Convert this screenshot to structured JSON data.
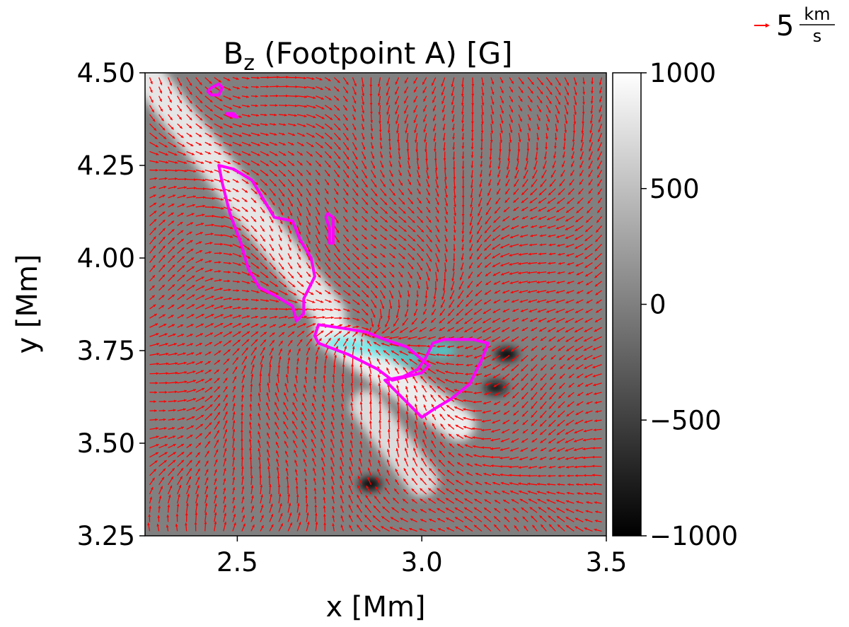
{
  "chart_data": {
    "type": "heatmap",
    "title": {
      "main": "B",
      "sub": "z",
      "rest": " (Footpoint A) [G]"
    },
    "xlabel": "x [Mm]",
    "ylabel": "y [Mm]",
    "xlim": [
      2.25,
      3.5
    ],
    "ylim": [
      3.25,
      4.5
    ],
    "x_ticks": [
      {
        "value": 2.5,
        "label": "2.5"
      },
      {
        "value": 3.0,
        "label": "3.0"
      },
      {
        "value": 3.5,
        "label": "3.5"
      }
    ],
    "y_ticks": [
      {
        "value": 3.25,
        "label": "3.25"
      },
      {
        "value": 3.5,
        "label": "3.50"
      },
      {
        "value": 3.75,
        "label": "3.75"
      },
      {
        "value": 4.0,
        "label": "4.00"
      },
      {
        "value": 4.25,
        "label": "4.25"
      },
      {
        "value": 4.5,
        "label": "4.50"
      }
    ],
    "colorbar": {
      "colormap": "gray",
      "vmin": -1000,
      "vmax": 1000,
      "ticks": [
        {
          "value": 1000,
          "label": "1000"
        },
        {
          "value": 500,
          "label": "500"
        },
        {
          "value": 0,
          "label": "0"
        },
        {
          "value": -500,
          "label": "−500"
        },
        {
          "value": -1000,
          "label": "−1000"
        }
      ]
    },
    "background_level": 0,
    "field_features": [
      {
        "kind": "strong_positive_lane",
        "x": [
          2.25,
          2.75
        ],
        "y": [
          4.5,
          3.85
        ],
        "level": 900
      },
      {
        "kind": "strong_positive_lane",
        "x": [
          2.75,
          3.1
        ],
        "y": [
          3.8,
          3.55
        ],
        "level": 950
      },
      {
        "kind": "positive_lane",
        "x": [
          2.85,
          3.0
        ],
        "y": [
          3.6,
          3.4
        ],
        "level": 800
      },
      {
        "kind": "negative_spot",
        "x": 3.23,
        "y": 3.74,
        "level": -950
      },
      {
        "kind": "negative_spot",
        "x": 2.86,
        "y": 3.39,
        "level": -950
      },
      {
        "kind": "negative_spot",
        "x": 3.2,
        "y": 3.65,
        "level": -900
      }
    ],
    "contours": [
      {
        "color": "#ff00ff",
        "name": "",
        "points": [
          [
            2.43,
            4.46
          ],
          [
            2.42,
            4.45
          ],
          [
            2.43,
            4.44
          ],
          [
            2.45,
            4.44
          ],
          [
            2.46,
            4.46
          ],
          [
            2.45,
            4.47
          ],
          [
            2.43,
            4.46
          ]
        ]
      },
      {
        "color": "#ff00ff",
        "name": "",
        "points": [
          [
            2.47,
            4.39
          ],
          [
            2.48,
            4.385
          ],
          [
            2.5,
            4.38
          ],
          [
            2.49,
            4.39
          ],
          [
            2.47,
            4.39
          ]
        ]
      },
      {
        "color": "#ff00ff",
        "name": "",
        "points": [
          [
            2.45,
            4.25
          ],
          [
            2.49,
            4.24
          ],
          [
            2.54,
            4.21
          ],
          [
            2.57,
            4.16
          ],
          [
            2.6,
            4.11
          ],
          [
            2.65,
            4.1
          ],
          [
            2.67,
            4.05
          ],
          [
            2.7,
            4.0
          ],
          [
            2.71,
            3.95
          ],
          [
            2.68,
            3.89
          ],
          [
            2.68,
            3.85
          ],
          [
            2.66,
            3.83
          ],
          [
            2.65,
            3.87
          ],
          [
            2.6,
            3.9
          ],
          [
            2.56,
            3.92
          ],
          [
            2.53,
            3.97
          ],
          [
            2.51,
            4.04
          ],
          [
            2.48,
            4.12
          ],
          [
            2.46,
            4.2
          ],
          [
            2.45,
            4.25
          ]
        ]
      },
      {
        "color": "#ff00ff",
        "name": "",
        "points": [
          [
            2.745,
            4.12
          ],
          [
            2.76,
            4.11
          ],
          [
            2.76,
            4.06
          ],
          [
            2.76,
            4.04
          ],
          [
            2.75,
            4.04
          ],
          [
            2.75,
            4.08
          ],
          [
            2.74,
            4.11
          ],
          [
            2.745,
            4.12
          ]
        ]
      },
      {
        "color": "#ff00ff",
        "name": "",
        "points": [
          [
            2.72,
            3.82
          ],
          [
            2.79,
            3.81
          ],
          [
            2.85,
            3.8
          ],
          [
            2.9,
            3.78
          ],
          [
            2.96,
            3.76
          ],
          [
            3.02,
            3.71
          ],
          [
            3.0,
            3.69
          ],
          [
            2.96,
            3.68
          ],
          [
            2.92,
            3.67
          ],
          [
            2.88,
            3.7
          ],
          [
            2.8,
            3.74
          ],
          [
            2.72,
            3.77
          ],
          [
            2.71,
            3.79
          ],
          [
            2.72,
            3.82
          ]
        ]
      },
      {
        "color": "#ff00ff",
        "name": "",
        "points": [
          [
            2.9,
            3.67
          ],
          [
            2.95,
            3.62
          ],
          [
            3.0,
            3.57
          ],
          [
            3.03,
            3.59
          ],
          [
            3.08,
            3.62
          ],
          [
            3.13,
            3.66
          ],
          [
            3.16,
            3.72
          ],
          [
            3.18,
            3.77
          ],
          [
            3.14,
            3.78
          ],
          [
            3.1,
            3.78
          ],
          [
            3.06,
            3.78
          ],
          [
            3.03,
            3.77
          ],
          [
            3.01,
            3.73
          ],
          [
            2.99,
            3.7
          ],
          [
            2.95,
            3.68
          ],
          [
            2.9,
            3.67
          ]
        ]
      }
    ],
    "vector_field": {
      "color": "#ff0000",
      "key_label": "5",
      "key_unit_numerator": "km",
      "key_unit_denominator": "s",
      "key_value": 5,
      "sample_spacing_mm": 0.025
    },
    "overlay_color": "#40e8e8"
  }
}
